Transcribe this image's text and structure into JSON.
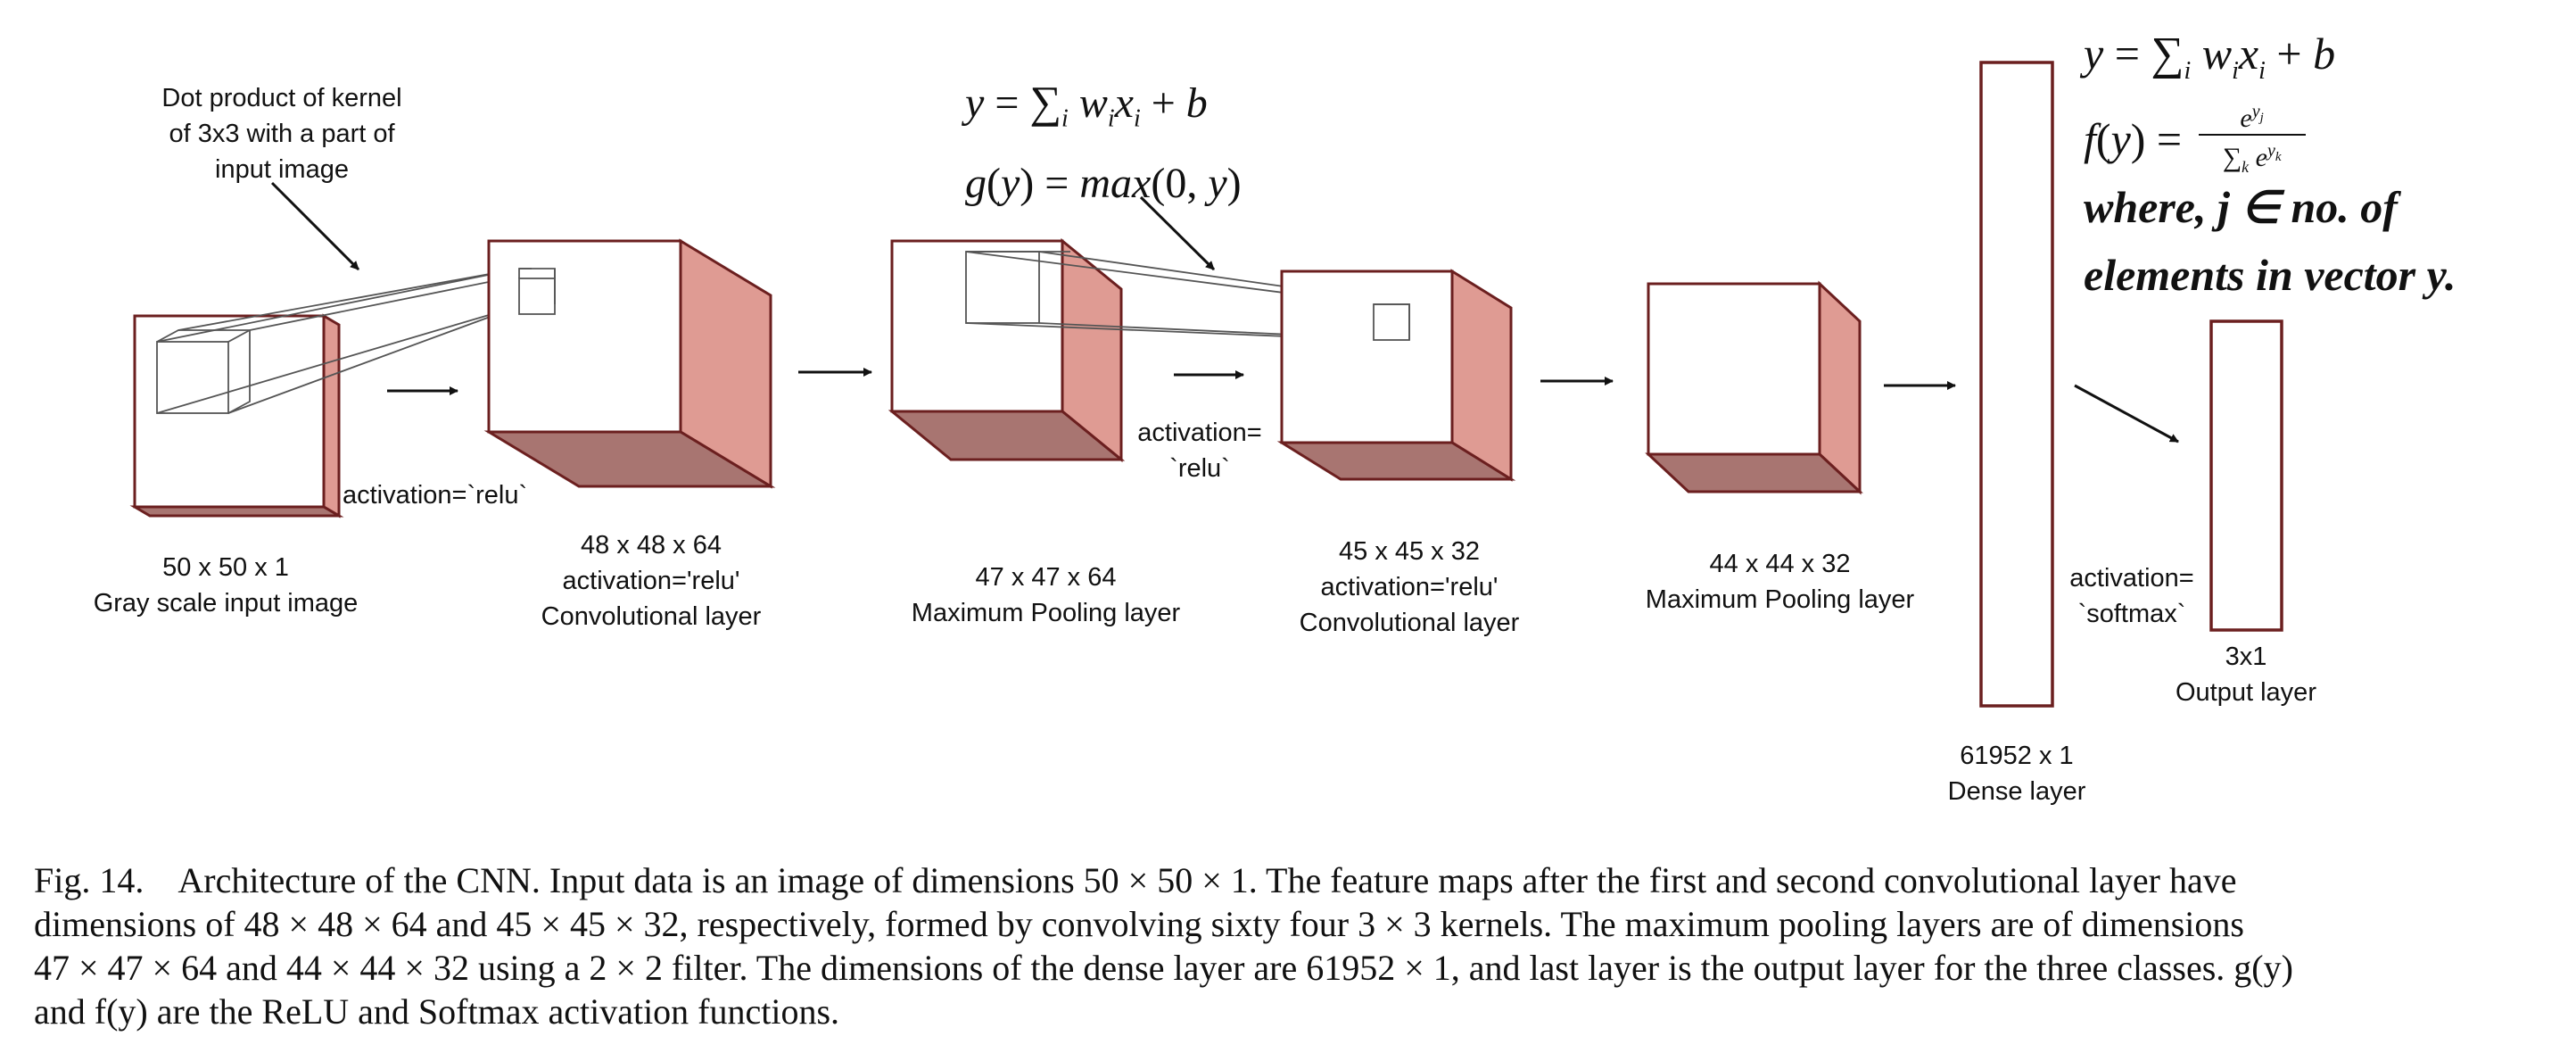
{
  "diagram": {
    "kernel_note": [
      "Dot product of kernel",
      "of 3x3 with a part of",
      "input image"
    ],
    "layers": {
      "input": [
        "50 x 50 x 1",
        "Gray scale input image"
      ],
      "conv1": [
        "48 x 48 x 64",
        "activation='relu'",
        "Convolutional layer"
      ],
      "pool1": [
        "47 x 47 x 64",
        "Maximum Pooling layer"
      ],
      "conv2": [
        "45 x 45 x 32",
        "activation='relu'",
        "Convolutional layer"
      ],
      "pool2": [
        "44 x 44 x 32",
        "Maximum Pooling layer"
      ],
      "dense": [
        "61952 x 1",
        "Dense layer"
      ],
      "output": [
        "3x1",
        "Output layer"
      ]
    },
    "activation_labels": {
      "after_input": "activation=`relu`",
      "after_pool1": [
        "activation=",
        "`relu`"
      ],
      "before_output": [
        "activation=",
        "`softmax`"
      ]
    },
    "equations_mid": [
      "y = Σᵢ wᵢxᵢ + b",
      "g(y) = max(0, y)"
    ],
    "equations_right": [
      "y = Σᵢ wᵢxᵢ + b",
      "f(y) = e^{y_j} / Σ_k e^{y_k}",
      "where, j ∈ no. of",
      "elements in vector y."
    ]
  },
  "caption": {
    "fig_label": "Fig. 14.",
    "lines": [
      "Architecture of the CNN. Input data is an image of dimensions 50 × 50 × 1. The feature maps after the first and second convolutional layer have",
      "dimensions of 48 × 48 × 64 and 45 × 45 × 32, respectively, formed by convolving sixty four 3 × 3 kernels. The maximum pooling layers are of dimensions",
      "47 × 47 × 64 and 44 × 44 × 32 using a 2 × 2 filter. The dimensions of the dense layer are 61952 × 1, and last layer is the output layer for the three classes. g(y)",
      "and f(y) are the ReLU and Softmax activation functions."
    ]
  },
  "colors": {
    "outline": "#6b1f1f",
    "side_face": "#df9b93",
    "bottom_face": "#a87571",
    "wire": "#555555",
    "arrow": "#111111"
  }
}
